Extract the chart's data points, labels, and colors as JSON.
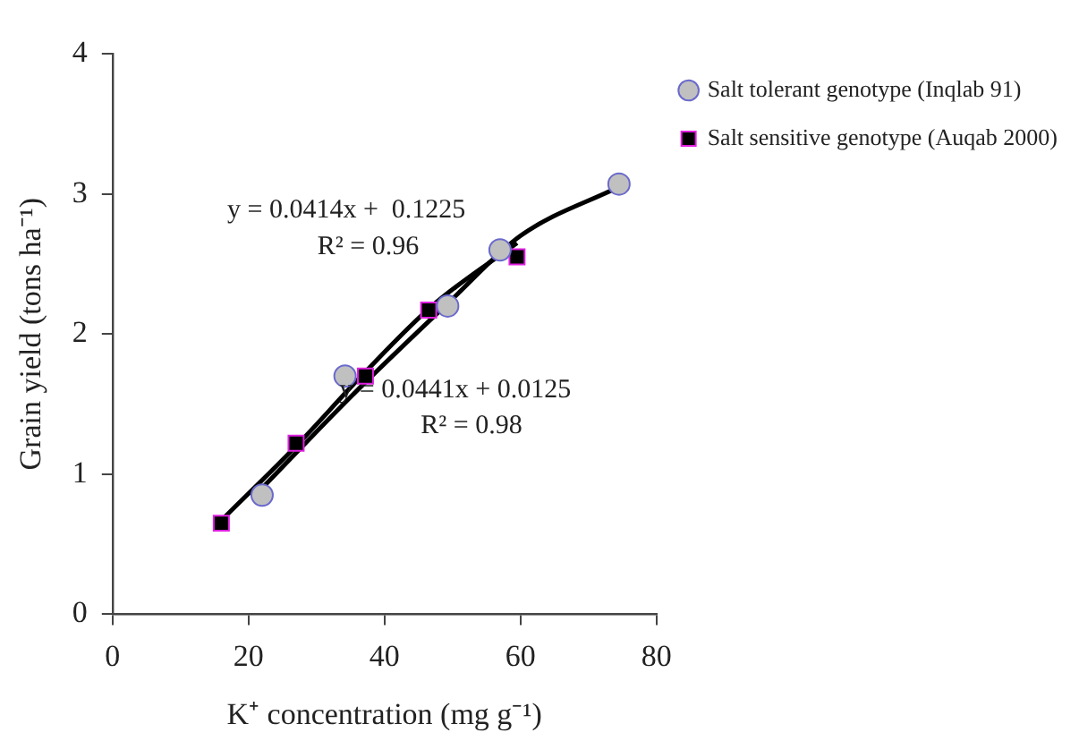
{
  "chart_data": {
    "type": "scatter",
    "xlabel": "K⁺ concentration (mg g⁻¹)",
    "ylabel": "Grain yield (tons ha⁻¹)",
    "xlim": [
      0,
      80
    ],
    "xticks": [
      0,
      20,
      40,
      60,
      80
    ],
    "ylim": [
      0,
      4
    ],
    "yticks": [
      0,
      1,
      2,
      3,
      4
    ],
    "grid": false,
    "legend": "top right",
    "annotations": [
      "y = 0.0414x +  0.1225",
      "R² = 0.96",
      "y = 0.0441x + 0.0125",
      "R² = 0.98"
    ],
    "series": [
      {
        "name": "Salt tolerant genotype (Inqlab 91)",
        "color": "#c0c0c0",
        "marker": "circle",
        "x": [
          22,
          34.2,
          49.3,
          57,
          74.5
        ],
        "values": [
          0.85,
          1.7,
          2.2,
          2.6,
          3.07
        ]
      },
      {
        "name": "Salt sensitive genotype (Auqab 2000)",
        "color": "#000000",
        "marker": "square",
        "x": [
          16,
          27,
          37.2,
          46.5,
          59.5
        ],
        "values": [
          0.65,
          1.22,
          1.7,
          2.17,
          2.55
        ]
      },
      {
        "type": "line",
        "color": "#000000",
        "marker": "none",
        "x": [
          22,
          35,
          50,
          60,
          74.5
        ],
        "values": [
          0.9,
          1.55,
          2.25,
          2.7,
          3.05
        ]
      },
      {
        "type": "line",
        "color": "#000000",
        "marker": "none",
        "x": [
          16,
          27,
          37,
          47,
          59.5
        ],
        "values": [
          0.67,
          1.2,
          1.72,
          2.2,
          2.65
        ]
      }
    ]
  }
}
